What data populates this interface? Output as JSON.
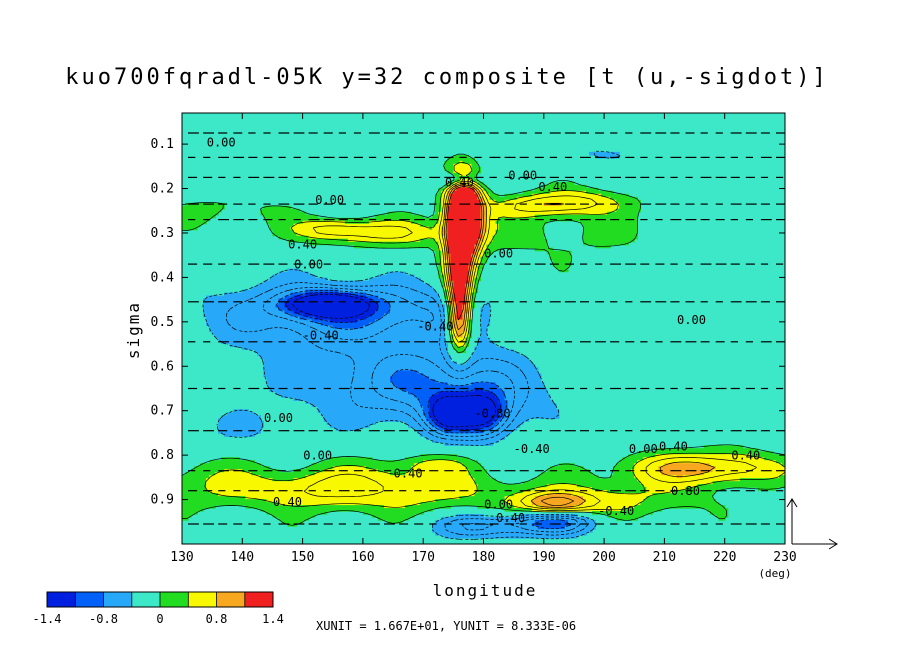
{
  "chart_data": {
    "type": "heatmap",
    "title": "kuo700fqradl-05K y=32 composite [t (u,-sigdot)]",
    "xlabel": "longitude",
    "ylabel": "sigma",
    "x_unit_label": "(deg)",
    "xlim": [
      130,
      230
    ],
    "ylim": [
      1.0,
      0.03
    ],
    "x_ticks": [
      130,
      140,
      150,
      160,
      170,
      180,
      190,
      200,
      210,
      220,
      230
    ],
    "x_tick_labels": [
      "130",
      "140",
      "150",
      "160",
      "170",
      "180",
      "190",
      "200",
      "210",
      "220",
      "230"
    ],
    "y_ticks": [
      0.1,
      0.2,
      0.3,
      0.4,
      0.5,
      0.6,
      0.7,
      0.8,
      0.9
    ],
    "y_tick_labels": [
      "0.1",
      "0.2",
      "0.3",
      "0.4",
      "0.5",
      "0.6",
      "0.7",
      "0.8",
      "0.9"
    ],
    "contour_interval": 0.2,
    "color_levels": [
      -1.4,
      -1.2,
      -1.0,
      -0.8,
      -0.6,
      -0.4,
      -0.2,
      0.2,
      0.4,
      0.6,
      0.8,
      1.0,
      1.4
    ],
    "colorbar": {
      "colors": [
        "#0020e0",
        "#0060f8",
        "#28a8f8",
        "#3ce8c8",
        "#22dc22",
        "#f8f800",
        "#f8a820",
        "#f02020"
      ],
      "tick_labels": [
        "-1.4",
        "-0.8",
        "0",
        "0.8",
        "1.4"
      ]
    },
    "contour_labels": [
      {
        "text": "0.00",
        "x": 136.5,
        "y": 0.105
      },
      {
        "text": "0.00",
        "x": 186.5,
        "y": 0.18
      },
      {
        "text": "0.40",
        "x": 176.0,
        "y": 0.195
      },
      {
        "text": "0.40",
        "x": 191.5,
        "y": 0.205
      },
      {
        "text": "0.00",
        "x": 154.5,
        "y": 0.235
      },
      {
        "text": "0.40",
        "x": 150.0,
        "y": 0.335
      },
      {
        "text": "0.00",
        "x": 151.0,
        "y": 0.38
      },
      {
        "text": "0.00",
        "x": 182.5,
        "y": 0.355
      },
      {
        "text": "0.00",
        "x": 214.5,
        "y": 0.505
      },
      {
        "text": "-0.40",
        "x": 153.0,
        "y": 0.54
      },
      {
        "text": "-0.40",
        "x": 172.0,
        "y": 0.52
      },
      {
        "text": "0.00",
        "x": 146.0,
        "y": 0.725
      },
      {
        "text": "-0.80",
        "x": 181.5,
        "y": 0.715
      },
      {
        "text": "0.00",
        "x": 152.5,
        "y": 0.81
      },
      {
        "text": "-0.40",
        "x": 188.0,
        "y": 0.795
      },
      {
        "text": "0.00",
        "x": 206.5,
        "y": 0.795
      },
      {
        "text": "0.40",
        "x": 211.5,
        "y": 0.79
      },
      {
        "text": "0.40",
        "x": 223.5,
        "y": 0.81
      },
      {
        "text": "0.40",
        "x": 167.5,
        "y": 0.85
      },
      {
        "text": "0.80",
        "x": 213.5,
        "y": 0.89
      },
      {
        "text": "0.40",
        "x": 147.5,
        "y": 0.915
      },
      {
        "text": "0.00",
        "x": 182.5,
        "y": 0.92
      },
      {
        "text": "0.40",
        "x": 184.5,
        "y": 0.95
      },
      {
        "text": "-0.40",
        "x": 202.0,
        "y": 0.935
      }
    ],
    "vector_reference": "XUNIT = 1.667E+01, YUNIT = 8.333E-06"
  }
}
